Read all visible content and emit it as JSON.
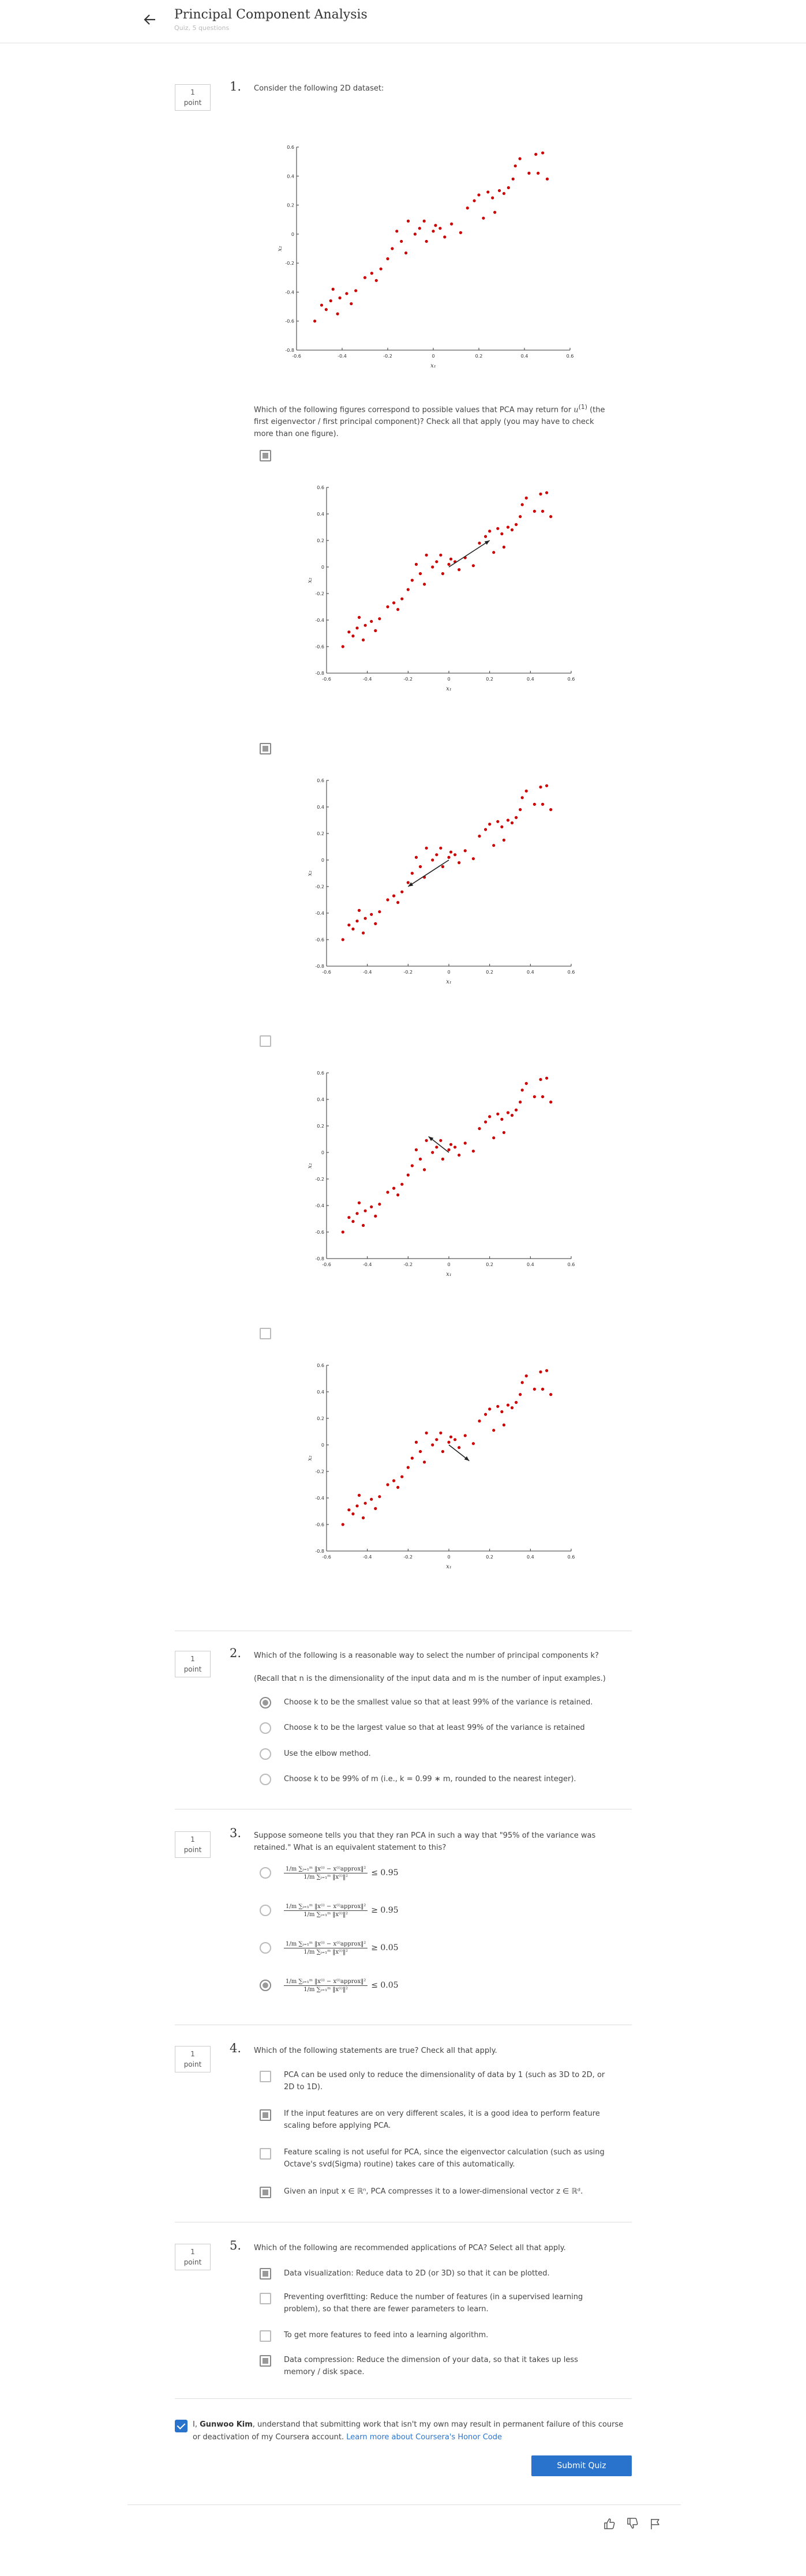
{
  "header": {
    "title": "Principal Component Analysis",
    "subtitle": "Quiz, 5 questions"
  },
  "point_label": [
    "1",
    "point"
  ],
  "q1": {
    "number": "1.",
    "prompt": "Consider the following 2D dataset:",
    "question_pre": "Which of the following figures correspond to possible values that PCA may return for ",
    "question_post": " (the first eigenvector / first principal component)? Check all that apply (you may have to check more than one figure).",
    "u_symbol": "u",
    "u_sup": "(1)",
    "options": [
      {
        "checked": true
      },
      {
        "checked": true
      },
      {
        "checked": false
      },
      {
        "checked": false
      }
    ]
  },
  "q2": {
    "number": "2.",
    "prompt": "Which of the following is a reasonable way to select the number of principal components k?",
    "note": "(Recall that n is the dimensionality of the input data and m is the number of input examples.)",
    "options": [
      {
        "label": "Choose k to be the smallest value so that at least 99% of the variance is retained.",
        "selected": true
      },
      {
        "label": "Choose k to be the largest value so that at least 99% of the variance is retained",
        "selected": false
      },
      {
        "label": "Use the elbow method.",
        "selected": false
      },
      {
        "label": "Choose k to be 99% of m (i.e., k = 0.99 ∗ m, rounded to the nearest integer).",
        "selected": false
      }
    ]
  },
  "q3": {
    "number": "3.",
    "prompt": "Suppose someone tells you that they ran PCA in such a way that \"95% of the variance was retained.\" What is an equivalent statement to this?",
    "numerator": "1/m ∑ᵢ₌₁ᵐ ‖x⁽ⁱ⁾ − x⁽ⁱ⁾approx‖²",
    "denominator": "1/m ∑ᵢ₌₁ᵐ ‖x⁽ⁱ⁾‖²",
    "options": [
      {
        "relation": "≤ 0.95",
        "selected": false
      },
      {
        "relation": "≥ 0.95",
        "selected": false
      },
      {
        "relation": "≥ 0.05",
        "selected": false
      },
      {
        "relation": "≤ 0.05",
        "selected": true
      }
    ]
  },
  "q4": {
    "number": "4.",
    "prompt": "Which of the following statements are true? Check all that apply.",
    "options": [
      {
        "label": "PCA can be used only to reduce the dimensionality of data by 1 (such as 3D to 2D, or 2D to 1D).",
        "checked": false
      },
      {
        "label": "If the input features are on very different scales, it is a good idea to perform feature scaling before applying PCA.",
        "checked": true
      },
      {
        "label": "Feature scaling is not useful for PCA, since the eigenvector calculation (such as using Octave's svd(Sigma) routine) takes care of this automatically.",
        "checked": false
      },
      {
        "label": "Given an input x ∈ ℝⁿ, PCA compresses it to a lower-dimensional vector z ∈ ℝᵈ.",
        "checked": true
      }
    ]
  },
  "q5": {
    "number": "5.",
    "prompt": "Which of the following are recommended applications of PCA? Select all that apply.",
    "options": [
      {
        "label": "Data visualization: Reduce data to 2D (or 3D) so that it can be plotted.",
        "checked": true
      },
      {
        "label": "Preventing overfitting: Reduce the number of features (in a supervised learning problem), so that there are fewer parameters to learn.",
        "checked": false
      },
      {
        "label": "To get more features to feed into a learning algorithm.",
        "checked": false
      },
      {
        "label": "Data compression: Reduce the dimension of your data, so that it takes up less memory / disk space.",
        "checked": true
      }
    ]
  },
  "honor": {
    "pre": "I, ",
    "name": "Gunwoo Kim",
    "post": ", understand that submitting work that isn't my own may result in permanent failure of this course or deactivation of my Coursera account. ",
    "link": "Learn more about Coursera's Honor Code",
    "checked": true
  },
  "submit_label": "Submit Quiz",
  "plot": {
    "xlabel": "x₁",
    "ylabel": "x₂",
    "xticks": [
      "-0.6",
      "-0.4",
      "-0.2",
      "0",
      "0.2",
      "0.4",
      "0.6"
    ],
    "yticks": [
      "0.6",
      "0.4",
      "0.2",
      "0",
      "-0.2",
      "-0.4",
      "-0.6",
      "-0.8"
    ],
    "point_color": "#cc0000",
    "points": [
      [
        -0.52,
        -0.6
      ],
      [
        -0.49,
        -0.49
      ],
      [
        -0.47,
        -0.52
      ],
      [
        -0.45,
        -0.46
      ],
      [
        -0.42,
        -0.55
      ],
      [
        -0.44,
        -0.38
      ],
      [
        -0.41,
        -0.44
      ],
      [
        -0.38,
        -0.41
      ],
      [
        -0.36,
        -0.48
      ],
      [
        -0.34,
        -0.39
      ],
      [
        -0.3,
        -0.3
      ],
      [
        -0.27,
        -0.27
      ],
      [
        -0.25,
        -0.32
      ],
      [
        -0.23,
        -0.24
      ],
      [
        -0.2,
        -0.17
      ],
      [
        -0.18,
        -0.1
      ],
      [
        -0.16,
        0.02
      ],
      [
        -0.14,
        -0.05
      ],
      [
        -0.12,
        -0.13
      ],
      [
        -0.11,
        0.09
      ],
      [
        -0.08,
        0.0
      ],
      [
        -0.06,
        0.04
      ],
      [
        -0.04,
        0.09
      ],
      [
        -0.03,
        -0.05
      ],
      [
        0.0,
        0.02
      ],
      [
        0.01,
        0.06
      ],
      [
        0.03,
        0.04
      ],
      [
        0.05,
        -0.02
      ],
      [
        0.08,
        0.07
      ],
      [
        0.12,
        0.01
      ],
      [
        0.15,
        0.18
      ],
      [
        0.18,
        0.23
      ],
      [
        0.2,
        0.27
      ],
      [
        0.22,
        0.11
      ],
      [
        0.24,
        0.29
      ],
      [
        0.26,
        0.25
      ],
      [
        0.27,
        0.15
      ],
      [
        0.29,
        0.3
      ],
      [
        0.31,
        0.28
      ],
      [
        0.33,
        0.32
      ],
      [
        0.35,
        0.38
      ],
      [
        0.36,
        0.47
      ],
      [
        0.38,
        0.52
      ],
      [
        0.42,
        0.42
      ],
      [
        0.45,
        0.55
      ],
      [
        0.46,
        0.42
      ],
      [
        0.48,
        0.56
      ],
      [
        0.5,
        0.38
      ]
    ],
    "arrows": [
      {
        "from": [
          0,
          0
        ],
        "to": [
          0.2,
          0.2
        ],
        "color": "#222222"
      },
      {
        "from": [
          0,
          0
        ],
        "to": [
          -0.2,
          -0.2
        ],
        "color": "#222222"
      },
      {
        "from": [
          0,
          0
        ],
        "to": [
          -0.1,
          0.12
        ],
        "color": "#222222"
      },
      {
        "from": [
          0,
          0
        ],
        "to": [
          0.1,
          -0.12
        ],
        "color": "#222222"
      }
    ]
  }
}
